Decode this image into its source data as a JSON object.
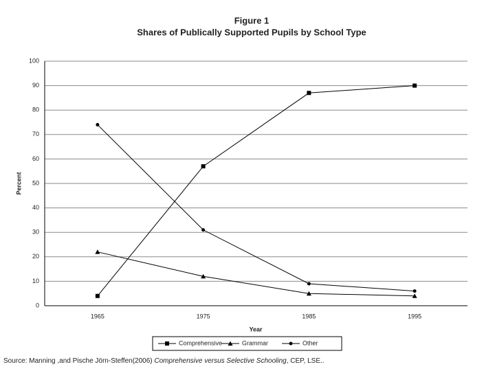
{
  "chart_data": {
    "type": "line",
    "title": "Figure 1",
    "subtitle": "Shares of Publically Supported Pupils by School Type",
    "x_label": "Year",
    "y_label": "Percent",
    "categories": [
      "1965",
      "1975",
      "1985",
      "1995"
    ],
    "series": [
      {
        "name": "Comprehensive",
        "color": "#000000",
        "marker": "square",
        "values": [
          4,
          57,
          87,
          90
        ]
      },
      {
        "name": "Grammar",
        "color": "#000000",
        "marker": "triangle",
        "values": [
          22,
          12,
          5,
          4
        ]
      },
      {
        "name": "Other",
        "color": "#000000",
        "marker": "circle",
        "values": [
          74,
          31,
          9,
          6
        ]
      }
    ],
    "ylim": [
      0,
      100
    ],
    "yticks": [
      0,
      10,
      20,
      30,
      40,
      50,
      60,
      70,
      80,
      90,
      100
    ],
    "grid": true,
    "legend": "bottom"
  },
  "source": {
    "prefix": "Source: Manning ,and Pische Jörn-Steffen(2006) ",
    "italic": "Comprehensive versus Selective Schooling",
    "suffix": ", CEP, LSE.."
  }
}
